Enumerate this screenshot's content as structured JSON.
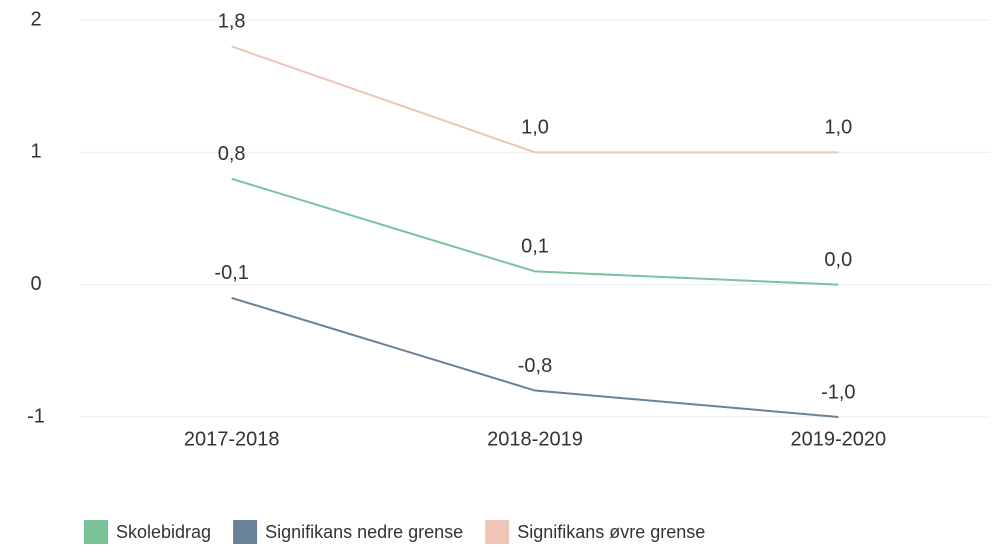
{
  "chart_data": {
    "type": "line",
    "categories": [
      "2017-2018",
      "2018-2019",
      "2019-2020"
    ],
    "series": [
      {
        "name": "Skolebidrag",
        "color": "#7cc39a",
        "values": [
          0.8,
          0.1,
          0.0
        ],
        "value_labels": [
          "0,8",
          "0,1",
          "0,0"
        ]
      },
      {
        "name": "Signifikans nedre grense",
        "color": "#6a8299",
        "values": [
          -0.1,
          -0.8,
          -1.0
        ],
        "value_labels": [
          "-0,1",
          "-0,8",
          "-1,0"
        ]
      },
      {
        "name": "Signifikans øvre grense",
        "color": "#efc5b8",
        "values": [
          1.8,
          1.0,
          1.0
        ],
        "value_labels": [
          "1,8",
          "1,0",
          "1,0"
        ]
      }
    ],
    "ylim": [
      -1,
      2
    ],
    "yticks": [
      -1,
      0,
      1,
      2
    ],
    "grid": true,
    "legend": "bottom-left"
  }
}
